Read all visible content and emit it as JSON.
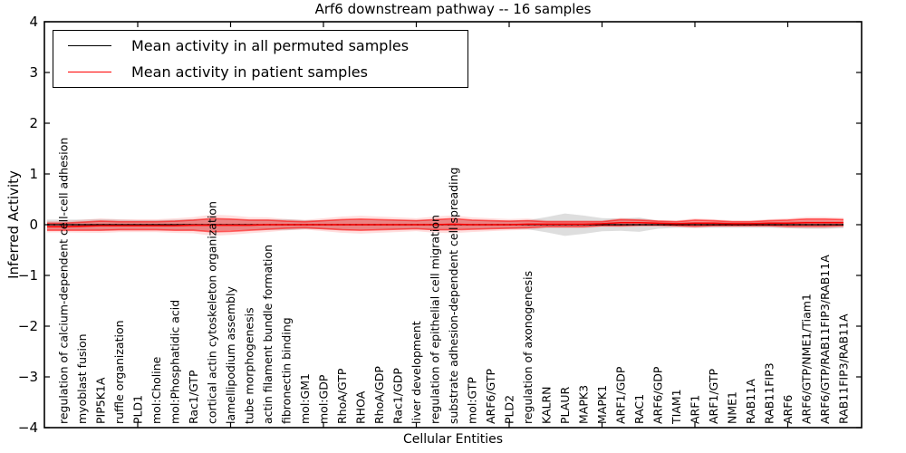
{
  "title": "Arf6 downstream pathway -- 16 samples",
  "xlabel": "Cellular Entities",
  "ylabel": "Inferred Activity",
  "legend": [
    {
      "label": "Mean activity in all permuted samples",
      "color": "#000000"
    },
    {
      "label": "Mean activity in patient samples",
      "color": "#ff0000"
    }
  ],
  "colors": {
    "axis": "#000000",
    "permuted_line": "#000000",
    "patient_line": "#ff0000",
    "permuted_band": "#a0a0a0",
    "patient_band": "#ff0000",
    "background": "#ffffff"
  },
  "chart_data": {
    "type": "line",
    "title": "Arf6 downstream pathway -- 16 samples",
    "xlabel": "Cellular Entities",
    "ylabel": "Inferred Activity",
    "ylim": [
      -4,
      4
    ],
    "ytick_labels": [
      "4",
      "3",
      "2",
      "1",
      "0",
      "−1",
      "−2",
      "−3",
      "−4"
    ],
    "ytick_values": [
      4,
      3,
      2,
      1,
      0,
      -1,
      -2,
      -3,
      -4
    ],
    "grid": false,
    "legend_position": "upper left",
    "categories": [
      "regulation of calcium-dependent cell-cell adhesion",
      "myoblast fusion",
      "PIP5K1A",
      "ruffle organization",
      "PLD1",
      "mol:Choline",
      "mol:Phosphatidic acid",
      "Rac1/GTP",
      "cortical actin cytoskeleton organization",
      "lamellipodium assembly",
      "tube morphogenesis",
      "actin filament bundle formation",
      "fibronectin binding",
      "mol:GM1",
      "mol:GDP",
      "RhoA/GTP",
      "RHOA",
      "RhoA/GDP",
      "Rac1/GDP",
      "liver development",
      "regulation of epithelial cell migration",
      "substrate adhesion-dependent cell spreading",
      "mol:GTP",
      "ARF6/GTP",
      "PLD2",
      "regulation of axonogenesis",
      "KALRN",
      "PLAUR",
      "MAPK3",
      "MAPK1",
      "ARF1/GDP",
      "RAC1",
      "ARF6/GDP",
      "TIAM1",
      "ARF1",
      "ARF1/GTP",
      "NME1",
      "RAB11A",
      "RAB11FIP3",
      "ARF6",
      "ARF6/GTP/NME1/Tiam1",
      "ARF6/GTP/RAB11FIP3/RAB11A",
      "RAB11FIP3/RAB11A"
    ],
    "series": [
      {
        "name": "Mean activity in all permuted samples",
        "color": "#000000",
        "values": [
          0,
          0,
          0,
          0,
          0,
          0,
          0,
          0,
          0,
          0,
          0,
          0,
          0,
          0,
          0,
          0,
          0,
          0,
          0,
          0,
          0,
          0,
          0,
          0,
          0,
          0,
          0,
          0,
          0,
          0,
          0,
          0,
          0,
          0,
          0,
          0,
          0,
          0,
          0,
          0,
          0,
          0,
          0
        ],
        "std": [
          0.1,
          0.1,
          0.11,
          0.1,
          0.09,
          0.09,
          0.1,
          0.11,
          0.12,
          0.11,
          0.1,
          0.1,
          0.11,
          0.09,
          0.09,
          0.1,
          0.1,
          0.09,
          0.09,
          0.09,
          0.1,
          0.1,
          0.09,
          0.08,
          0.08,
          0.09,
          0.15,
          0.22,
          0.18,
          0.13,
          0.12,
          0.14,
          0.08,
          0.06,
          0.06,
          0.06,
          0.06,
          0.06,
          0.06,
          0.07,
          0.08,
          0.08,
          0.07
        ]
      },
      {
        "name": "Mean activity in patient samples",
        "color": "#ff0000",
        "values": [
          -0.04,
          -0.03,
          -0.02,
          -0.02,
          -0.02,
          -0.02,
          -0.02,
          -0.01,
          -0.01,
          -0.01,
          -0.01,
          0,
          0,
          0,
          0,
          0,
          0,
          0,
          0,
          0,
          0,
          0.01,
          0,
          0,
          0,
          0.01,
          0.01,
          0.01,
          0.01,
          0.02,
          0.04,
          0.04,
          0.03,
          0.02,
          0.03,
          0.03,
          0.02,
          0.02,
          0.03,
          0.03,
          0.04,
          0.04,
          0.04
        ],
        "std": [
          0.07,
          0.08,
          0.09,
          0.08,
          0.08,
          0.08,
          0.09,
          0.1,
          0.13,
          0.12,
          0.1,
          0.09,
          0.07,
          0.06,
          0.08,
          0.1,
          0.11,
          0.1,
          0.09,
          0.08,
          0.1,
          0.11,
          0.09,
          0.08,
          0.07,
          0.07,
          0.05,
          0.05,
          0.05,
          0.04,
          0.06,
          0.05,
          0.04,
          0.04,
          0.06,
          0.05,
          0.04,
          0.04,
          0.05,
          0.06,
          0.07,
          0.07,
          0.06
        ]
      }
    ]
  }
}
